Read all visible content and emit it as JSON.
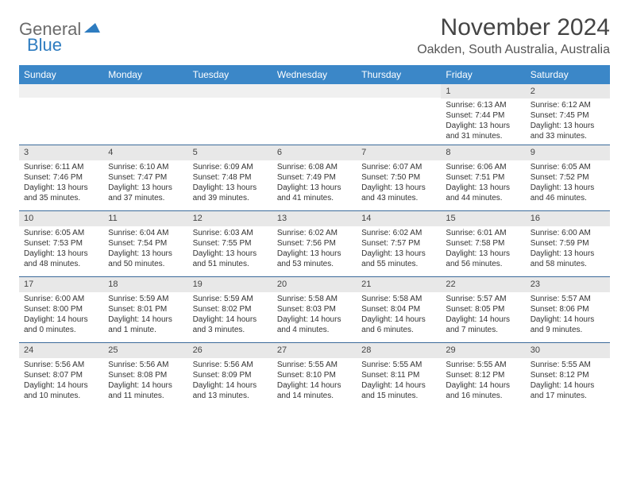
{
  "logo": {
    "part1": "General",
    "part2": "Blue"
  },
  "title": "November 2024",
  "location": "Oakden, South Australia, Australia",
  "day_headers": [
    "Sunday",
    "Monday",
    "Tuesday",
    "Wednesday",
    "Thursday",
    "Friday",
    "Saturday"
  ],
  "colors": {
    "header_bg": "#3b87c8",
    "header_text": "#ffffff",
    "daynum_bg": "#e8e8e8",
    "week_border": "#3b6a9a",
    "logo_gray": "#6b6b6b",
    "logo_blue": "#2e7cc0"
  },
  "weeks": [
    [
      {
        "empty": true
      },
      {
        "empty": true
      },
      {
        "empty": true
      },
      {
        "empty": true
      },
      {
        "empty": true
      },
      {
        "day": "1",
        "sunrise": "6:13 AM",
        "sunset": "7:44 PM",
        "daylight": "13 hours and 31 minutes."
      },
      {
        "day": "2",
        "sunrise": "6:12 AM",
        "sunset": "7:45 PM",
        "daylight": "13 hours and 33 minutes."
      }
    ],
    [
      {
        "day": "3",
        "sunrise": "6:11 AM",
        "sunset": "7:46 PM",
        "daylight": "13 hours and 35 minutes."
      },
      {
        "day": "4",
        "sunrise": "6:10 AM",
        "sunset": "7:47 PM",
        "daylight": "13 hours and 37 minutes."
      },
      {
        "day": "5",
        "sunrise": "6:09 AM",
        "sunset": "7:48 PM",
        "daylight": "13 hours and 39 minutes."
      },
      {
        "day": "6",
        "sunrise": "6:08 AM",
        "sunset": "7:49 PM",
        "daylight": "13 hours and 41 minutes."
      },
      {
        "day": "7",
        "sunrise": "6:07 AM",
        "sunset": "7:50 PM",
        "daylight": "13 hours and 43 minutes."
      },
      {
        "day": "8",
        "sunrise": "6:06 AM",
        "sunset": "7:51 PM",
        "daylight": "13 hours and 44 minutes."
      },
      {
        "day": "9",
        "sunrise": "6:05 AM",
        "sunset": "7:52 PM",
        "daylight": "13 hours and 46 minutes."
      }
    ],
    [
      {
        "day": "10",
        "sunrise": "6:05 AM",
        "sunset": "7:53 PM",
        "daylight": "13 hours and 48 minutes."
      },
      {
        "day": "11",
        "sunrise": "6:04 AM",
        "sunset": "7:54 PM",
        "daylight": "13 hours and 50 minutes."
      },
      {
        "day": "12",
        "sunrise": "6:03 AM",
        "sunset": "7:55 PM",
        "daylight": "13 hours and 51 minutes."
      },
      {
        "day": "13",
        "sunrise": "6:02 AM",
        "sunset": "7:56 PM",
        "daylight": "13 hours and 53 minutes."
      },
      {
        "day": "14",
        "sunrise": "6:02 AM",
        "sunset": "7:57 PM",
        "daylight": "13 hours and 55 minutes."
      },
      {
        "day": "15",
        "sunrise": "6:01 AM",
        "sunset": "7:58 PM",
        "daylight": "13 hours and 56 minutes."
      },
      {
        "day": "16",
        "sunrise": "6:00 AM",
        "sunset": "7:59 PM",
        "daylight": "13 hours and 58 minutes."
      }
    ],
    [
      {
        "day": "17",
        "sunrise": "6:00 AM",
        "sunset": "8:00 PM",
        "daylight": "14 hours and 0 minutes."
      },
      {
        "day": "18",
        "sunrise": "5:59 AM",
        "sunset": "8:01 PM",
        "daylight": "14 hours and 1 minute."
      },
      {
        "day": "19",
        "sunrise": "5:59 AM",
        "sunset": "8:02 PM",
        "daylight": "14 hours and 3 minutes."
      },
      {
        "day": "20",
        "sunrise": "5:58 AM",
        "sunset": "8:03 PM",
        "daylight": "14 hours and 4 minutes."
      },
      {
        "day": "21",
        "sunrise": "5:58 AM",
        "sunset": "8:04 PM",
        "daylight": "14 hours and 6 minutes."
      },
      {
        "day": "22",
        "sunrise": "5:57 AM",
        "sunset": "8:05 PM",
        "daylight": "14 hours and 7 minutes."
      },
      {
        "day": "23",
        "sunrise": "5:57 AM",
        "sunset": "8:06 PM",
        "daylight": "14 hours and 9 minutes."
      }
    ],
    [
      {
        "day": "24",
        "sunrise": "5:56 AM",
        "sunset": "8:07 PM",
        "daylight": "14 hours and 10 minutes."
      },
      {
        "day": "25",
        "sunrise": "5:56 AM",
        "sunset": "8:08 PM",
        "daylight": "14 hours and 11 minutes."
      },
      {
        "day": "26",
        "sunrise": "5:56 AM",
        "sunset": "8:09 PM",
        "daylight": "14 hours and 13 minutes."
      },
      {
        "day": "27",
        "sunrise": "5:55 AM",
        "sunset": "8:10 PM",
        "daylight": "14 hours and 14 minutes."
      },
      {
        "day": "28",
        "sunrise": "5:55 AM",
        "sunset": "8:11 PM",
        "daylight": "14 hours and 15 minutes."
      },
      {
        "day": "29",
        "sunrise": "5:55 AM",
        "sunset": "8:12 PM",
        "daylight": "14 hours and 16 minutes."
      },
      {
        "day": "30",
        "sunrise": "5:55 AM",
        "sunset": "8:12 PM",
        "daylight": "14 hours and 17 minutes."
      }
    ]
  ]
}
